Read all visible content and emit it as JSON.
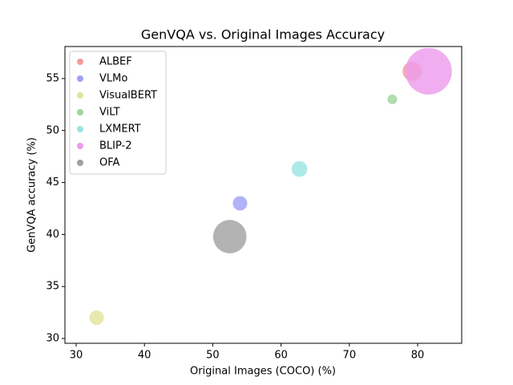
{
  "chart_data": {
    "type": "scatter",
    "title": "GenVQA vs. Original Images Accuracy",
    "x_label": "Original Images (COCO) (%)",
    "y_label": "GenVQA accuracy (%)",
    "xlim": [
      28.36,
      86.45
    ],
    "xticks": [
      30,
      40,
      50,
      60,
      70,
      80
    ],
    "ylim": [
      29.54,
      58.08
    ],
    "yticks": [
      30,
      35,
      40,
      45,
      50,
      55
    ],
    "legend": "upper left",
    "alpha": 0.8,
    "series": [
      {
        "name": "ALBEF",
        "color": "#f59a9a",
        "x": [
          79.2
        ],
        "values": [
          55.7
        ],
        "sizes": [
          300
        ]
      },
      {
        "name": "VLMo",
        "color": "#9f9ff7",
        "x": [
          54.0
        ],
        "values": [
          43.0
        ],
        "sizes": [
          170
        ]
      },
      {
        "name": "VisualBERT",
        "color": "#e3e39a",
        "x": [
          33.0
        ],
        "values": [
          32.0
        ],
        "sizes": [
          170
        ]
      },
      {
        "name": "ViLT",
        "color": "#9fd49a",
        "x": [
          76.3
        ],
        "values": [
          53.0
        ],
        "sizes": [
          75
        ]
      },
      {
        "name": "LXMERT",
        "color": "#9ae3e3",
        "x": [
          62.7
        ],
        "values": [
          46.3
        ],
        "sizes": [
          200
        ]
      },
      {
        "name": "BLIP-2",
        "color": "#ec9aec",
        "x": [
          81.6
        ],
        "values": [
          55.7
        ],
        "sizes": [
          1750
        ]
      },
      {
        "name": "OFA",
        "color": "#a0a0a0",
        "x": [
          52.5
        ],
        "values": [
          39.8
        ],
        "sizes": [
          900
        ]
      }
    ]
  }
}
